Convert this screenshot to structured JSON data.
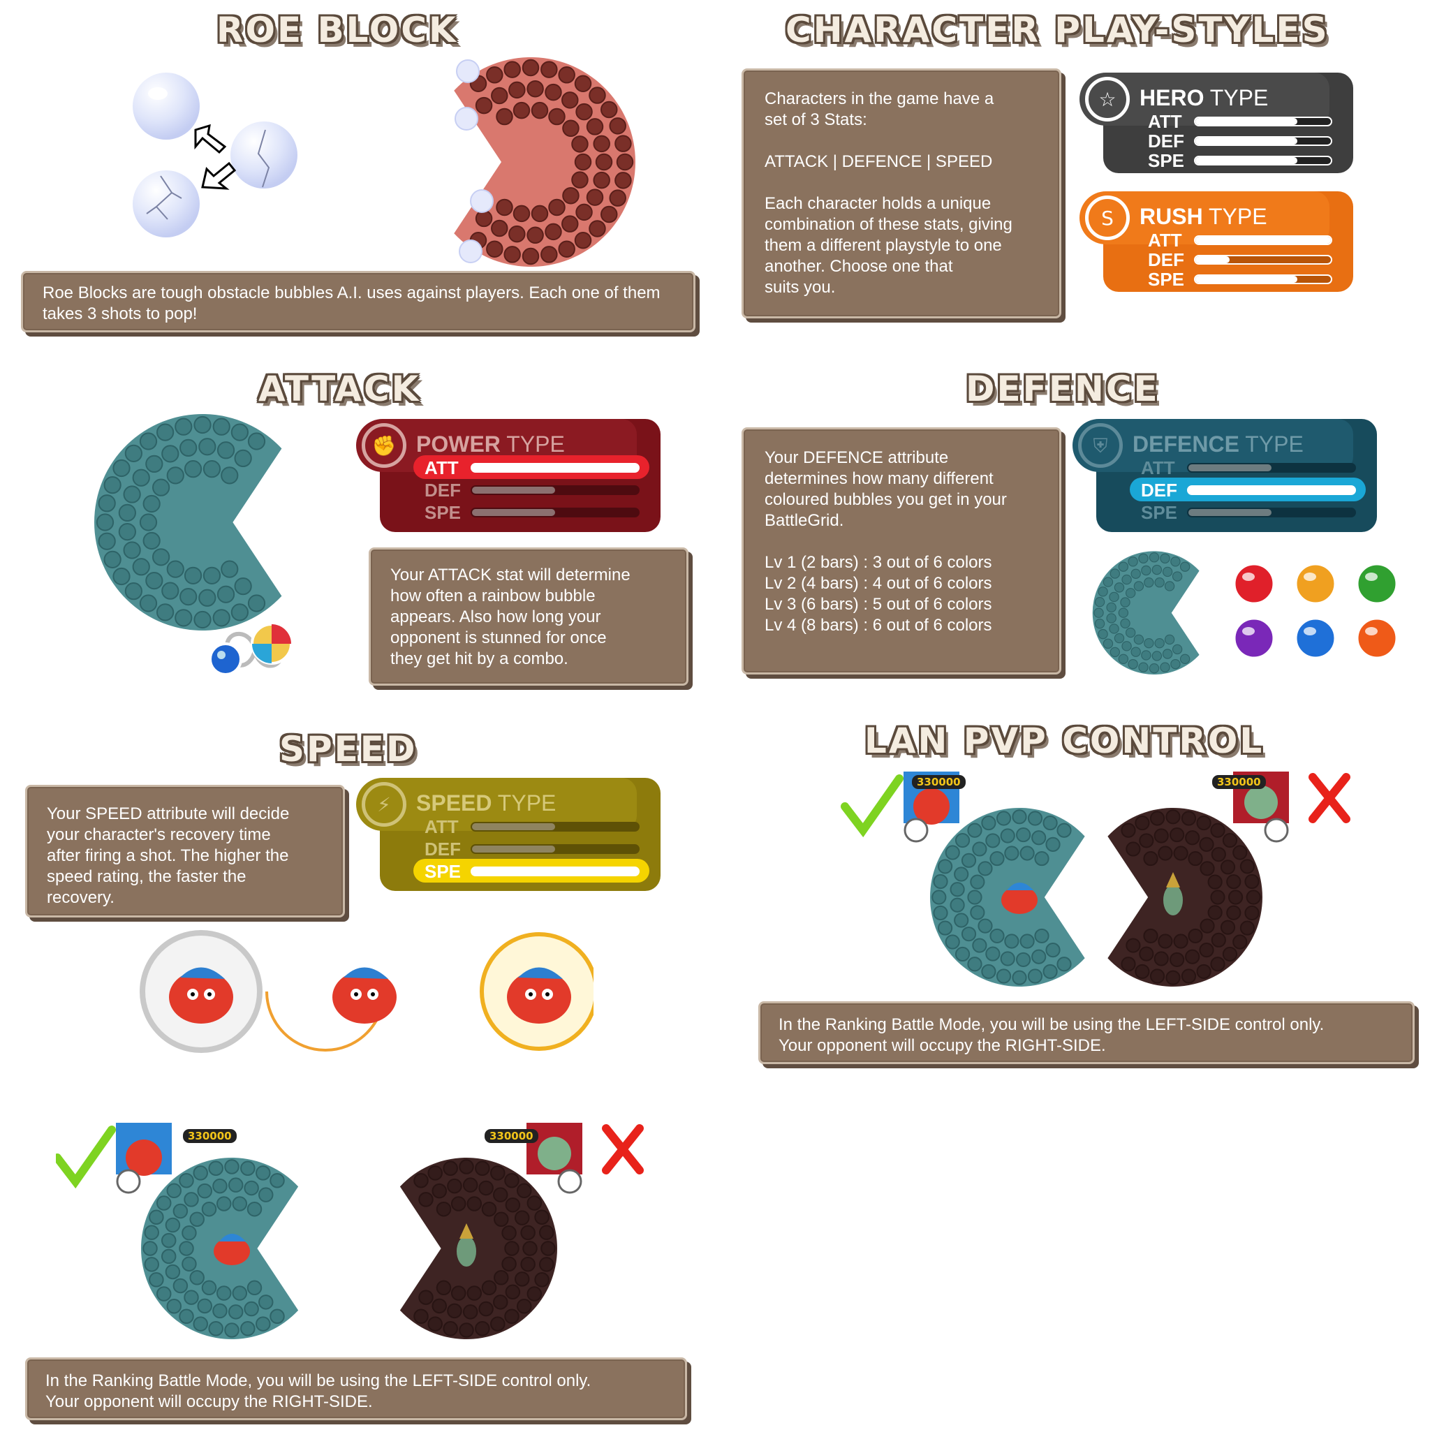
{
  "sections": {
    "roe_block": {
      "title": "ROE BLOCK",
      "description": "Roe Blocks are tough obstacle bubbles A.I. uses against players. Each one of them takes 3 shots to pop!"
    },
    "playstyles": {
      "title": "CHARACTER PLAY-STYLES",
      "description_lines": [
        "Characters in the game have a",
        "set of 3 Stats:",
        "",
        "ATTACK  |  DEFENCE  |  SPEED",
        "",
        "Each character holds a unique",
        "combination of these stats, giving",
        "them a different playstyle to one",
        "another. Choose one that",
        "suits you."
      ],
      "hero_card": {
        "name_bold": "HERO",
        "name_rest": " TYPE",
        "labels": [
          "ATT",
          "DEF",
          "SPE"
        ],
        "levels": [
          0.75,
          0.75,
          0.75
        ]
      },
      "rush_card": {
        "name_bold": "RUSH",
        "name_rest": " TYPE",
        "labels": [
          "ATT",
          "DEF",
          "SPE"
        ],
        "levels": [
          1.0,
          0.25,
          0.75
        ]
      }
    },
    "attack": {
      "title": "ATTACK",
      "card": {
        "name_bold": "POWER",
        "name_rest": " TYPE",
        "labels": [
          "ATT",
          "DEF",
          "SPE"
        ],
        "levels": [
          1.0,
          0.5,
          0.5
        ]
      },
      "description_lines": [
        "Your ATTACK stat will determine",
        "how often a rainbow bubble",
        "appears. Also how long your",
        "opponent is stunned for once",
        "they get hit by a combo."
      ]
    },
    "defence": {
      "title": "DEFENCE",
      "card": {
        "name_bold": "DEFENCE",
        "name_rest": " TYPE",
        "labels": [
          "ATT",
          "DEF",
          "SPE"
        ],
        "levels": [
          0.5,
          1.0,
          0.5
        ]
      },
      "description_lines": [
        "Your DEFENCE attribute",
        "determines how many different",
        "coloured bubbles you get in your",
        "BattleGrid.",
        "",
        "Lv 1 (2 bars) : 3 out of 6 colors",
        "Lv 2 (4 bars) : 4 out of 6 colors",
        "Lv 3 (6 bars) : 5 out of 6 colors",
        "Lv 4 (8 bars) : 6 out of 6 colors"
      ]
    },
    "speed": {
      "title": "SPEED",
      "card": {
        "name_bold": "SPEED",
        "name_rest": " TYPE",
        "labels": [
          "ATT",
          "DEF",
          "SPE"
        ],
        "levels": [
          0.5,
          0.5,
          1.0
        ]
      },
      "description_lines": [
        "Your SPEED attribute will decide",
        "your character's recovery time",
        "after firing a shot. The higher the",
        "speed rating, the faster the",
        "recovery."
      ]
    },
    "lan_pvp": {
      "title": "LAN PVP CONTROL",
      "score_left": "330000",
      "score_right": "330000",
      "description_lines": [
        "In the Ranking Battle Mode, you will be using the LEFT-SIDE control only.",
        "Your opponent will occupy the RIGHT-SIDE."
      ]
    },
    "ranking": {
      "score_left": "330000",
      "score_right": "330000",
      "description_lines": [
        "In the Ranking Battle Mode, you will be using the LEFT-SIDE control only.",
        "Your opponent will occupy the RIGHT-SIDE."
      ]
    }
  },
  "colors": {
    "panel": "#8a725e",
    "hero": "#4a4a4a",
    "rush": "#f07a1a",
    "power": "#8b1a22",
    "defence": "#1f5a6e",
    "speed": "#9c8a12",
    "teal_grid": "#4f8f93",
    "red_grid": "#d9786e",
    "dark_grid": "#3e2423"
  },
  "defence_bubbles": [
    "#e0202a",
    "#f0a020",
    "#30a030",
    "#7a28b8",
    "#1f70d8",
    "#ef5a18"
  ]
}
